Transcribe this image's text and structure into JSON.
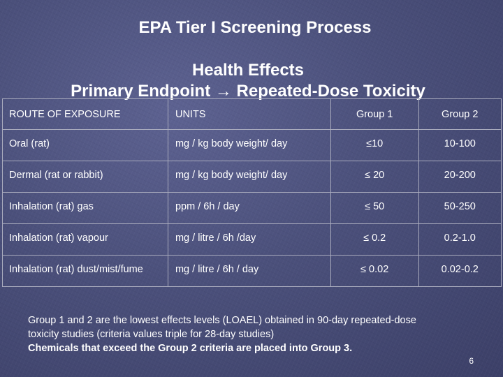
{
  "slide": {
    "title": "EPA Tier I Screening Process",
    "subtitle_line1": "Health Effects",
    "subtitle_line2": "Primary Endpoint → Repeated-Dose Toxicity",
    "page_number": "6"
  },
  "table": {
    "headers": [
      "ROUTE OF EXPOSURE",
      "UNITS",
      "Group 1",
      "Group 2"
    ],
    "rows": [
      {
        "route": "Oral (rat)",
        "units": "mg / kg body weight/ day",
        "group1": "≤10",
        "group2": "10-100"
      },
      {
        "route": "Dermal (rat or rabbit)",
        "units": "mg / kg body weight/ day",
        "group1": "≤ 20",
        "group2": "20-200"
      },
      {
        "route": "Inhalation (rat) gas",
        "units": "ppm / 6h / day",
        "group1": "≤ 50",
        "group2": "50-250"
      },
      {
        "route": "Inhalation (rat) vapour",
        "units": "mg / litre / 6h /day",
        "group1": "≤ 0.2",
        "group2": "0.2-1.0"
      },
      {
        "route": "Inhalation (rat) dust/mist/fume",
        "units": "mg / litre / 6h / day",
        "group1": "≤ 0.02",
        "group2": "0.02-0.2"
      }
    ]
  },
  "note": {
    "line1": "Group 1 and 2 are the lowest effects levels (LOAEL) obtained in 90-day repeated-dose",
    "line2": "toxicity studies  (criteria values triple for 28-day studies)",
    "line3": "Chemicals that exceed the Group 2 criteria are placed into Group 3."
  },
  "colors": {
    "background": "#4a4f7a",
    "text": "#ffffff",
    "table_border": "#a9abbd"
  }
}
